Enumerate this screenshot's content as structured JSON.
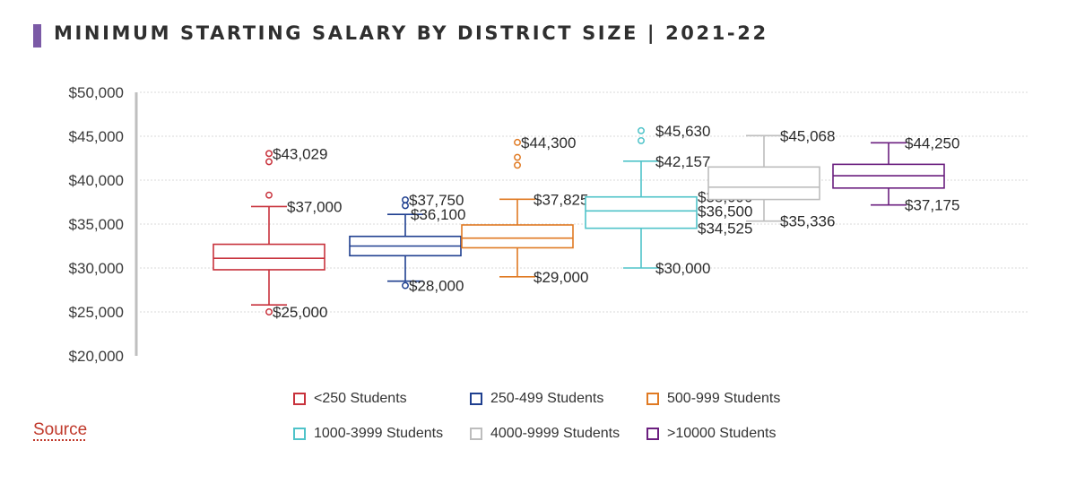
{
  "colors": {
    "title_bar": "#7b5aa6",
    "source": "#c0392b",
    "grid": "#d9d9d9",
    "axis": "#bfbfbf"
  },
  "header": {
    "title": "MINIMUM STARTING SALARY BY DISTRICT SIZE | 2021-22"
  },
  "footer": {
    "source_label": "Source"
  },
  "chart_data": {
    "type": "box",
    "title": "MINIMUM STARTING SALARY BY DISTRICT SIZE | 2021-22",
    "ylim": [
      20000,
      50000
    ],
    "yticks": [
      20000,
      25000,
      30000,
      35000,
      40000,
      45000,
      50000
    ],
    "ytick_labels": [
      "$20,000",
      "$25,000",
      "$30,000",
      "$35,000",
      "$40,000",
      "$45,000",
      "$50,000"
    ],
    "grid": true,
    "legend_position": "bottom",
    "series": [
      {
        "name": "<250 Students",
        "color": "#c8323c",
        "whisker_low": 25800,
        "q1": 29800,
        "median": 31100,
        "q3": 32700,
        "whisker_high": 37000,
        "outliers": [
          25000,
          38300,
          42100,
          43029
        ],
        "labels": [
          {
            "text": "$43,029",
            "value": 43029
          },
          {
            "text": "$37,000",
            "value": 37000
          },
          {
            "text": "$25,000",
            "value": 25000
          }
        ]
      },
      {
        "name": "250-499 Students",
        "color": "#1f3f8f",
        "whisker_low": 28500,
        "q1": 31400,
        "median": 32500,
        "q3": 33600,
        "whisker_high": 36100,
        "outliers": [
          28000,
          37100,
          37750
        ],
        "labels": [
          {
            "text": "$37,750",
            "value": 37750
          },
          {
            "text": "$36,100",
            "value": 36100
          },
          {
            "text": "$28,000",
            "value": 28000
          }
        ]
      },
      {
        "name": "500-999 Students",
        "color": "#e07a23",
        "whisker_low": 29000,
        "q1": 32300,
        "median": 33400,
        "q3": 34900,
        "whisker_high": 37825,
        "outliers": [
          41700,
          42600,
          44300
        ],
        "labels": [
          {
            "text": "$44,300",
            "value": 44300
          },
          {
            "text": "$37,825",
            "value": 37825
          },
          {
            "text": "$29,000",
            "value": 29000
          }
        ]
      },
      {
        "name": "1000-3999 Students",
        "color": "#4fc3c9",
        "whisker_low": 30000,
        "q1": 34525,
        "median": 36500,
        "q3": 38090,
        "whisker_high": 42157,
        "outliers": [
          44500,
          45630
        ],
        "labels": [
          {
            "text": "$45,630",
            "value": 45630
          },
          {
            "text": "$42,157",
            "value": 42157
          },
          {
            "text": "$38,090",
            "value": 38090
          },
          {
            "text": "$36,500",
            "value": 36500
          },
          {
            "text": "$34,525",
            "value": 34525
          },
          {
            "text": "$30,000",
            "value": 30000
          }
        ]
      },
      {
        "name": "4000-9999 Students",
        "color": "#bdbdbd",
        "whisker_low": 35336,
        "q1": 37800,
        "median": 39200,
        "q3": 41500,
        "whisker_high": 45068,
        "outliers": [],
        "labels": [
          {
            "text": "$45,068",
            "value": 45068
          },
          {
            "text": "$35,336",
            "value": 35336
          }
        ]
      },
      {
        "name": ">10000 Students",
        "color": "#6b1f7f",
        "whisker_low": 37175,
        "q1": 39100,
        "median": 40500,
        "q3": 41800,
        "whisker_high": 44250,
        "outliers": [],
        "labels": [
          {
            "text": "$44,250",
            "value": 44250
          },
          {
            "text": "$37,175",
            "value": 37175
          }
        ]
      }
    ]
  }
}
